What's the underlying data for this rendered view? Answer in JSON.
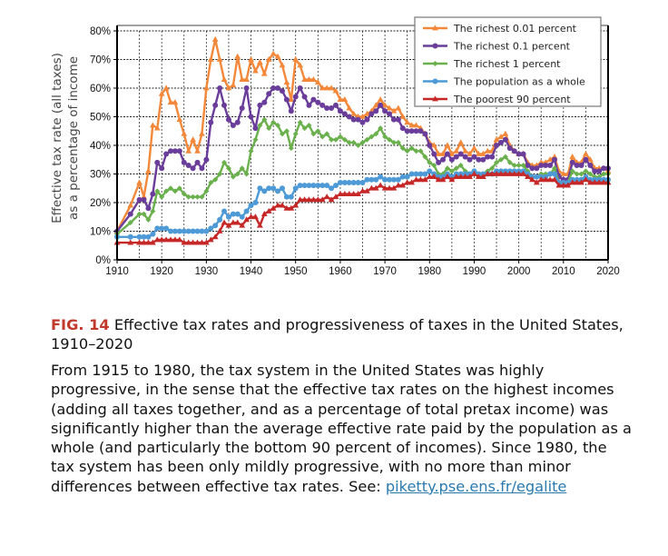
{
  "chart_data": {
    "type": "line",
    "title": "",
    "xlabel": "",
    "ylabel": "Effective tax rate (all taxes) as a percentage of income",
    "ylabel_lines": [
      "Effective tax rate (all taxes)",
      "as a percentage of income"
    ],
    "xlim": [
      1910,
      2020
    ],
    "ylim": [
      0,
      80
    ],
    "x_ticks": [
      1910,
      1920,
      1930,
      1940,
      1950,
      1960,
      1970,
      1980,
      1990,
      2000,
      2010,
      2020
    ],
    "x_tick_labels": [
      "1910",
      "1920",
      "1930",
      "1940",
      "1950",
      "1960",
      "1970",
      "1980",
      "1990",
      "2000",
      "2010",
      "2020"
    ],
    "y_ticks": [
      0,
      10,
      20,
      30,
      40,
      50,
      60,
      70,
      80
    ],
    "y_tick_labels": [
      "0%",
      "10%",
      "20%",
      "30%",
      "40%",
      "50%",
      "60%",
      "70%",
      "80%"
    ],
    "grid": true,
    "legend_position": "top-right",
    "series": [
      {
        "name": "The richest 0.01 percent",
        "color": "#f4883a",
        "marker": "triangle",
        "x": [
          1910,
          1913,
          1915,
          1916,
          1917,
          1918,
          1919,
          1920,
          1921,
          1922,
          1923,
          1924,
          1925,
          1926,
          1927,
          1928,
          1929,
          1930,
          1931,
          1932,
          1933,
          1934,
          1935,
          1936,
          1937,
          1938,
          1939,
          1940,
          1941,
          1942,
          1943,
          1944,
          1945,
          1946,
          1947,
          1948,
          1949,
          1950,
          1951,
          1952,
          1953,
          1954,
          1955,
          1956,
          1957,
          1958,
          1959,
          1960,
          1961,
          1962,
          1963,
          1964,
          1965,
          1966,
          1967,
          1968,
          1969,
          1970,
          1971,
          1972,
          1973,
          1974,
          1975,
          1976,
          1977,
          1978,
          1979,
          1980,
          1981,
          1982,
          1983,
          1984,
          1985,
          1986,
          1987,
          1988,
          1989,
          1990,
          1991,
          1992,
          1993,
          1994,
          1995,
          1996,
          1997,
          1998,
          1999,
          2000,
          2001,
          2002,
          2003,
          2004,
          2005,
          2006,
          2007,
          2008,
          2009,
          2010,
          2011,
          2012,
          2013,
          2014,
          2015,
          2016,
          2017,
          2018,
          2019,
          2020
        ],
        "y": [
          10,
          19,
          27,
          22,
          31,
          47,
          46,
          58,
          60,
          55,
          55,
          49,
          44,
          38,
          42,
          38,
          44,
          60,
          70,
          77,
          70,
          63,
          60,
          61,
          71,
          63,
          63,
          70,
          66,
          69,
          65,
          70,
          72,
          71,
          68,
          62,
          56,
          70,
          68,
          63,
          63,
          63,
          62,
          60,
          60,
          60,
          59,
          56,
          56,
          53,
          51,
          50,
          50,
          51,
          52,
          54,
          56,
          54,
          53,
          52,
          53,
          50,
          48,
          47,
          47,
          46,
          44,
          41,
          40,
          37,
          37,
          40,
          37,
          38,
          41,
          38,
          37,
          39,
          37,
          37,
          38,
          38,
          42,
          43,
          44,
          40,
          38,
          37,
          37,
          34,
          33,
          33,
          34,
          34,
          35,
          36,
          31,
          30,
          30,
          36,
          34,
          34,
          37,
          35,
          32,
          32,
          32,
          31
        ]
      },
      {
        "name": "The richest 0.1 percent",
        "color": "#6a3d9a",
        "marker": "circle",
        "x": [
          1910,
          1913,
          1915,
          1916,
          1917,
          1918,
          1919,
          1920,
          1921,
          1922,
          1923,
          1924,
          1925,
          1926,
          1927,
          1928,
          1929,
          1930,
          1931,
          1932,
          1933,
          1934,
          1935,
          1936,
          1937,
          1938,
          1939,
          1940,
          1941,
          1942,
          1943,
          1944,
          1945,
          1946,
          1947,
          1948,
          1949,
          1950,
          1951,
          1952,
          1953,
          1954,
          1955,
          1956,
          1957,
          1958,
          1959,
          1960,
          1961,
          1962,
          1963,
          1964,
          1965,
          1966,
          1967,
          1968,
          1969,
          1970,
          1971,
          1972,
          1973,
          1974,
          1975,
          1976,
          1977,
          1978,
          1979,
          1980,
          1981,
          1982,
          1983,
          1984,
          1985,
          1986,
          1987,
          1988,
          1989,
          1990,
          1991,
          1992,
          1993,
          1994,
          1995,
          1996,
          1997,
          1998,
          1999,
          2000,
          2001,
          2002,
          2003,
          2004,
          2005,
          2006,
          2007,
          2008,
          2009,
          2010,
          2011,
          2012,
          2013,
          2014,
          2015,
          2016,
          2017,
          2018,
          2019,
          2020
        ],
        "y": [
          10,
          16,
          21,
          21,
          18,
          23,
          34,
          32,
          37,
          38,
          38,
          38,
          34,
          33,
          32,
          34,
          32,
          35,
          48,
          54,
          60,
          54,
          49,
          47,
          48,
          53,
          60,
          50,
          46,
          54,
          55,
          58,
          60,
          60,
          59,
          56,
          52,
          57,
          60,
          57,
          54,
          56,
          55,
          54,
          53,
          53,
          54,
          52,
          51,
          50,
          49,
          49,
          48,
          49,
          51,
          52,
          54,
          52,
          51,
          49,
          49,
          46,
          45,
          45,
          45,
          45,
          44,
          40,
          37,
          34,
          35,
          37,
          35,
          36,
          37,
          36,
          35,
          36,
          35,
          35,
          36,
          36,
          40,
          41,
          42,
          39,
          38,
          37,
          37,
          33,
          32,
          32,
          33,
          33,
          33,
          35,
          29,
          28,
          28,
          34,
          33,
          33,
          35,
          33,
          31,
          31,
          32,
          32
        ]
      },
      {
        "name": "The richest 1 percent",
        "color": "#6ab04c",
        "marker": "diamond",
        "x": [
          1910,
          1913,
          1915,
          1916,
          1917,
          1918,
          1919,
          1920,
          1921,
          1922,
          1923,
          1924,
          1925,
          1926,
          1927,
          1928,
          1929,
          1930,
          1931,
          1932,
          1933,
          1934,
          1935,
          1936,
          1937,
          1938,
          1939,
          1940,
          1941,
          1942,
          1943,
          1944,
          1945,
          1946,
          1947,
          1948,
          1949,
          1950,
          1951,
          1952,
          1953,
          1954,
          1955,
          1956,
          1957,
          1958,
          1959,
          1960,
          1961,
          1962,
          1963,
          1964,
          1965,
          1966,
          1967,
          1968,
          1969,
          1970,
          1971,
          1972,
          1973,
          1974,
          1975,
          1976,
          1977,
          1978,
          1979,
          1980,
          1981,
          1982,
          1983,
          1984,
          1985,
          1986,
          1987,
          1988,
          1989,
          1990,
          1991,
          1992,
          1993,
          1994,
          1995,
          1996,
          1997,
          1998,
          1999,
          2000,
          2001,
          2002,
          2003,
          2004,
          2005,
          2006,
          2007,
          2008,
          2009,
          2010,
          2011,
          2012,
          2013,
          2014,
          2015,
          2016,
          2017,
          2018,
          2019,
          2020
        ],
        "y": [
          9,
          13,
          16,
          16,
          14,
          17,
          24,
          22,
          24,
          25,
          24,
          25,
          23,
          22,
          22,
          22,
          22,
          24,
          27,
          28,
          30,
          34,
          32,
          29,
          30,
          32,
          30,
          38,
          42,
          47,
          49,
          46,
          48,
          47,
          44,
          45,
          39,
          44,
          48,
          46,
          47,
          44,
          45,
          43,
          44,
          42,
          42,
          43,
          42,
          41,
          41,
          40,
          41,
          42,
          43,
          44,
          46,
          43,
          42,
          41,
          41,
          39,
          38,
          39,
          38,
          38,
          36,
          34,
          33,
          30,
          30,
          32,
          31,
          32,
          33,
          31,
          30,
          31,
          30,
          30,
          31,
          32,
          34,
          35,
          36,
          34,
          33,
          33,
          33,
          31,
          29,
          29,
          30,
          30,
          30,
          32,
          27,
          27,
          27,
          31,
          30,
          30,
          31,
          30,
          29,
          29,
          30,
          30
        ]
      },
      {
        "name": "The population as a whole",
        "color": "#4d9ad6",
        "marker": "circle",
        "x": [
          1910,
          1913,
          1915,
          1916,
          1917,
          1918,
          1919,
          1920,
          1921,
          1922,
          1923,
          1924,
          1925,
          1926,
          1927,
          1928,
          1929,
          1930,
          1931,
          1932,
          1933,
          1934,
          1935,
          1936,
          1937,
          1938,
          1939,
          1940,
          1941,
          1942,
          1943,
          1944,
          1945,
          1946,
          1947,
          1948,
          1949,
          1950,
          1951,
          1952,
          1953,
          1954,
          1955,
          1956,
          1957,
          1958,
          1959,
          1960,
          1961,
          1962,
          1963,
          1964,
          1965,
          1966,
          1967,
          1968,
          1969,
          1970,
          1971,
          1972,
          1973,
          1974,
          1975,
          1976,
          1977,
          1978,
          1979,
          1980,
          1981,
          1982,
          1983,
          1984,
          1985,
          1986,
          1987,
          1988,
          1989,
          1990,
          1991,
          1992,
          1993,
          1994,
          1995,
          1996,
          1997,
          1998,
          1999,
          2000,
          2001,
          2002,
          2003,
          2004,
          2005,
          2006,
          2007,
          2008,
          2009,
          2010,
          2011,
          2012,
          2013,
          2014,
          2015,
          2016,
          2017,
          2018,
          2019,
          2020
        ],
        "y": [
          8,
          8,
          8,
          8,
          8,
          9,
          11,
          11,
          11,
          10,
          10,
          10,
          10,
          10,
          10,
          10,
          10,
          10,
          11,
          12,
          14,
          17,
          15,
          16,
          16,
          15,
          17,
          19,
          20,
          25,
          24,
          25,
          25,
          24,
          25,
          22,
          22,
          25,
          26,
          26,
          26,
          26,
          26,
          26,
          26,
          25,
          26,
          27,
          27,
          27,
          27,
          27,
          27,
          28,
          28,
          28,
          29,
          28,
          28,
          28,
          28,
          29,
          29,
          30,
          30,
          30,
          30,
          31,
          30,
          29,
          29,
          30,
          29,
          30,
          30,
          30,
          30,
          31,
          30,
          30,
          30,
          30,
          31,
          31,
          31,
          31,
          31,
          31,
          31,
          30,
          29,
          29,
          29,
          29,
          30,
          30,
          27,
          27,
          27,
          28,
          28,
          28,
          29,
          28,
          28,
          28,
          28,
          28
        ]
      },
      {
        "name": "The poorest 90 percent",
        "color": "#c62828",
        "marker": "triangle",
        "x": [
          1910,
          1913,
          1915,
          1916,
          1917,
          1918,
          1919,
          1920,
          1921,
          1922,
          1923,
          1924,
          1925,
          1926,
          1927,
          1928,
          1929,
          1930,
          1931,
          1932,
          1933,
          1934,
          1935,
          1936,
          1937,
          1938,
          1939,
          1940,
          1941,
          1942,
          1943,
          1944,
          1945,
          1946,
          1947,
          1948,
          1949,
          1950,
          1951,
          1952,
          1953,
          1954,
          1955,
          1956,
          1957,
          1958,
          1959,
          1960,
          1961,
          1962,
          1963,
          1964,
          1965,
          1966,
          1967,
          1968,
          1969,
          1970,
          1971,
          1972,
          1973,
          1974,
          1975,
          1976,
          1977,
          1978,
          1979,
          1980,
          1981,
          1982,
          1983,
          1984,
          1985,
          1986,
          1987,
          1988,
          1989,
          1990,
          1991,
          1992,
          1993,
          1994,
          1995,
          1996,
          1997,
          1998,
          1999,
          2000,
          2001,
          2002,
          2003,
          2004,
          2005,
          2006,
          2007,
          2008,
          2009,
          2010,
          2011,
          2012,
          2013,
          2014,
          2015,
          2016,
          2017,
          2018,
          2019,
          2020
        ],
        "y": [
          6,
          6,
          6,
          6,
          6,
          6,
          7,
          7,
          7,
          7,
          7,
          7,
          6,
          6,
          6,
          6,
          6,
          6,
          7,
          8,
          10,
          13,
          12,
          13,
          13,
          12,
          14,
          15,
          15,
          12,
          16,
          17,
          18,
          19,
          19,
          18,
          18,
          19,
          21,
          21,
          21,
          21,
          21,
          21,
          22,
          21,
          22,
          23,
          23,
          23,
          23,
          23,
          24,
          24,
          25,
          25,
          26,
          25,
          25,
          25,
          26,
          26,
          27,
          27,
          28,
          28,
          28,
          29,
          29,
          28,
          28,
          29,
          28,
          29,
          29,
          29,
          29,
          30,
          29,
          29,
          30,
          30,
          30,
          30,
          30,
          30,
          30,
          30,
          30,
          29,
          28,
          27,
          28,
          28,
          28,
          28,
          26,
          26,
          26,
          27,
          27,
          27,
          28,
          27,
          27,
          27,
          27,
          27
        ]
      }
    ]
  },
  "caption": {
    "fig_number": "FIG. 14",
    "fig_title": " Effective tax rates and progressiveness of taxes in the United States, 1910–2020",
    "body": "From 1915 to 1980, the tax system in the United States was highly progressive, in the sense that the effective tax rates on the highest incomes (adding all taxes together, and as a percentage of total pretax income) was significantly higher than the average effective rate paid by the population as a whole (and particularly the bottom 90 percent of incomes). Since 1980, the tax system has been only mildly progressive, with no more than minor differences between effective tax rates. See: ",
    "link_text": "piketty.pse.ens.fr/egalite"
  }
}
